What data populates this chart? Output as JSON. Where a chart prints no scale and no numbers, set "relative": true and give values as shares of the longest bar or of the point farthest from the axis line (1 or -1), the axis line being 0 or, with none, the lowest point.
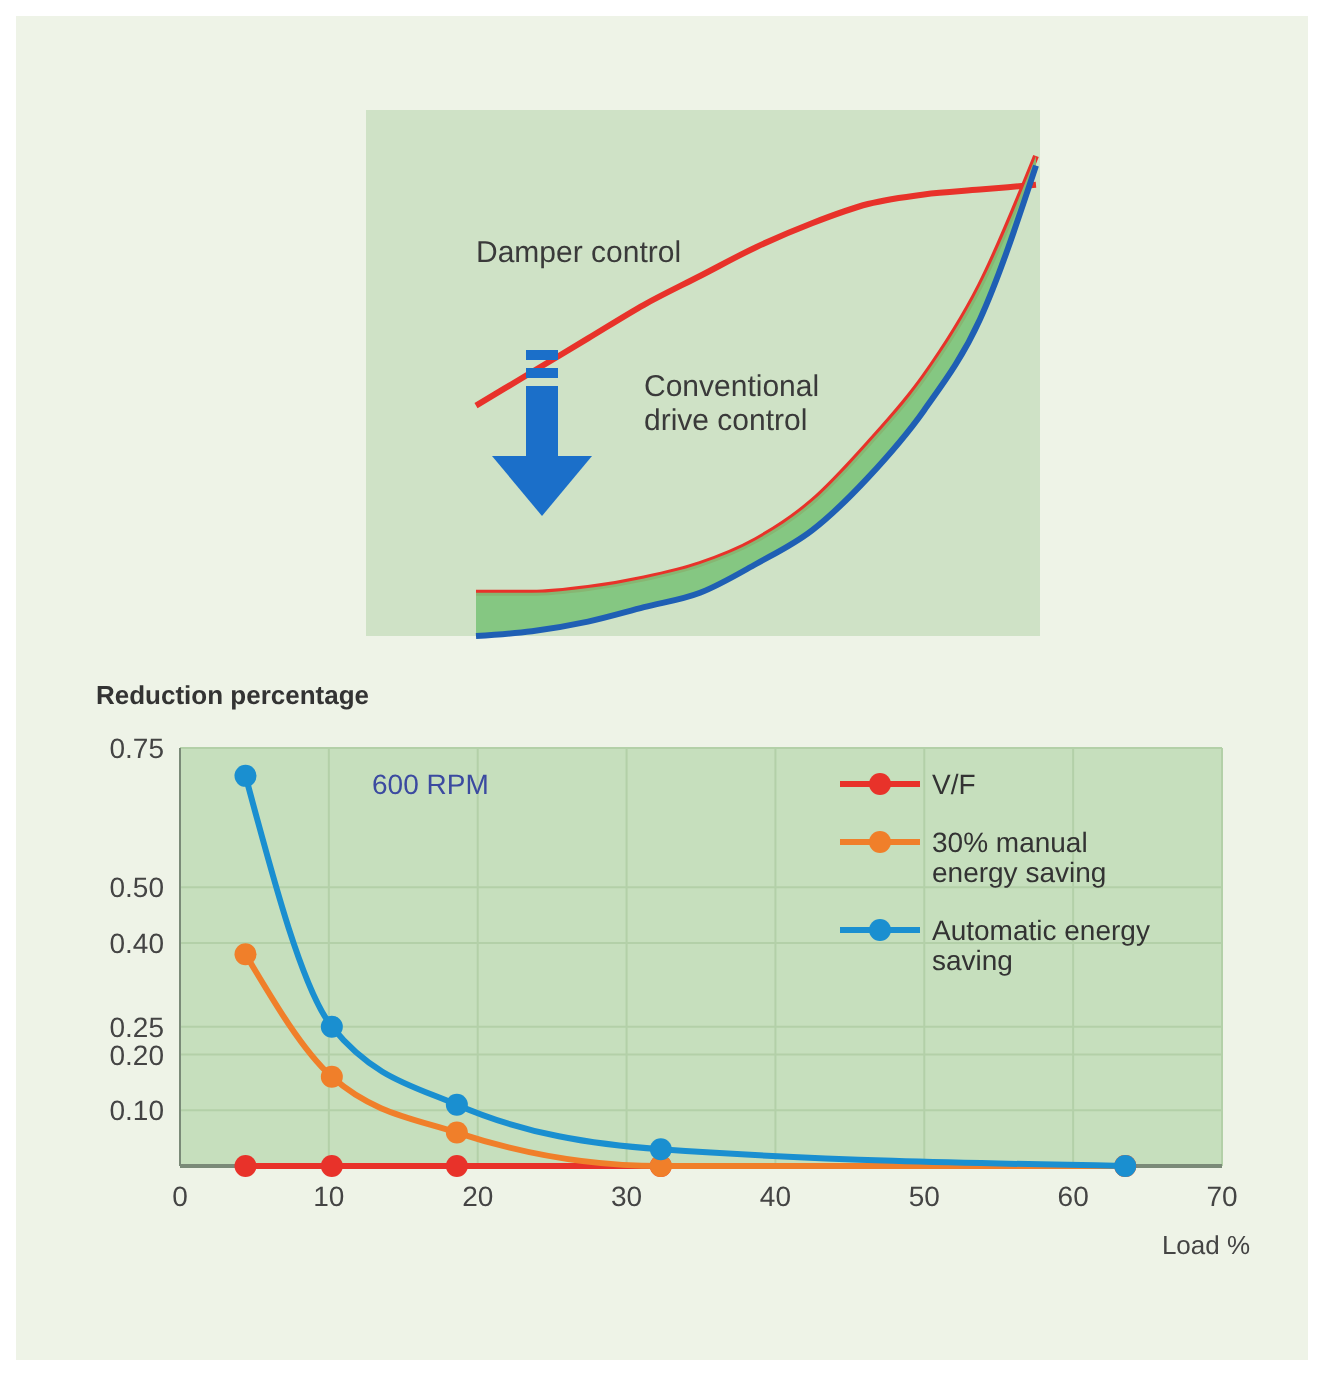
{
  "chart_data": [
    {
      "type": "line",
      "relative": true,
      "categories": [
        null,
        null,
        null,
        null,
        null,
        null,
        null,
        null,
        null,
        null,
        null
      ],
      "series": [
        {
          "name": "Damper control",
          "color": "#e8322a",
          "values": [
            0.48,
            0.55,
            0.62,
            0.69,
            0.75,
            0.81,
            0.86,
            0.9,
            0.92,
            0.93,
            0.94
          ]
        },
        {
          "name": "Conventional drive control",
          "color": "#e8322a",
          "values": [
            0.09,
            0.09,
            0.1,
            0.12,
            0.15,
            0.2,
            0.28,
            0.4,
            0.54,
            0.73,
            1.0
          ]
        },
        {
          "color": "#1f5fb4",
          "values": [
            0,
            0.01,
            0.03,
            0.06,
            0.09,
            0.15,
            0.22,
            0.33,
            0.47,
            0.66,
            0.98
          ],
          "lower": [
            0,
            0.01,
            0.03,
            0.06,
            0.09,
            0.15,
            0.22,
            0.33,
            0.47,
            0.66,
            0.98
          ],
          "upper": [
            0.09,
            0.09,
            0.1,
            0.12,
            0.15,
            0.2,
            0.28,
            0.4,
            0.54,
            0.73,
            1.0
          ]
        }
      ]
    },
    {
      "type": "line",
      "ylabel": "Reduction percentage",
      "xlabel": "Load %",
      "x": [
        4.4,
        10.2,
        18.6,
        32.3,
        63.5
      ],
      "xlim": [
        0,
        70
      ],
      "xticks": [
        0,
        10,
        20,
        30,
        40,
        50,
        60,
        70
      ],
      "ylim": [
        0,
        0.75
      ],
      "yticks": [
        {
          "value": 0.1,
          "label": "0.10"
        },
        {
          "value": 0.2,
          "label": "0.20"
        },
        0.25,
        {
          "value": 0.4,
          "label": "0.40"
        },
        {
          "value": 0.5,
          "label": "0.50"
        },
        0.75
      ],
      "grid": true,
      "legend": "top right",
      "marker": "circle",
      "annotations": [
        "600 RPM"
      ],
      "series": [
        {
          "name": "V/F",
          "color": "#e8322a",
          "values": [
            0,
            0,
            0,
            0,
            0
          ]
        },
        {
          "name": "30% manual energy saving",
          "color": "#f07f2a",
          "values": [
            0.38,
            0.16,
            0.06,
            0,
            0
          ]
        },
        {
          "name": "Automatic energy saving",
          "color": "#1a8fd0",
          "values": [
            0.7,
            0.25,
            0.11,
            0.03,
            0
          ]
        }
      ]
    }
  ]
}
